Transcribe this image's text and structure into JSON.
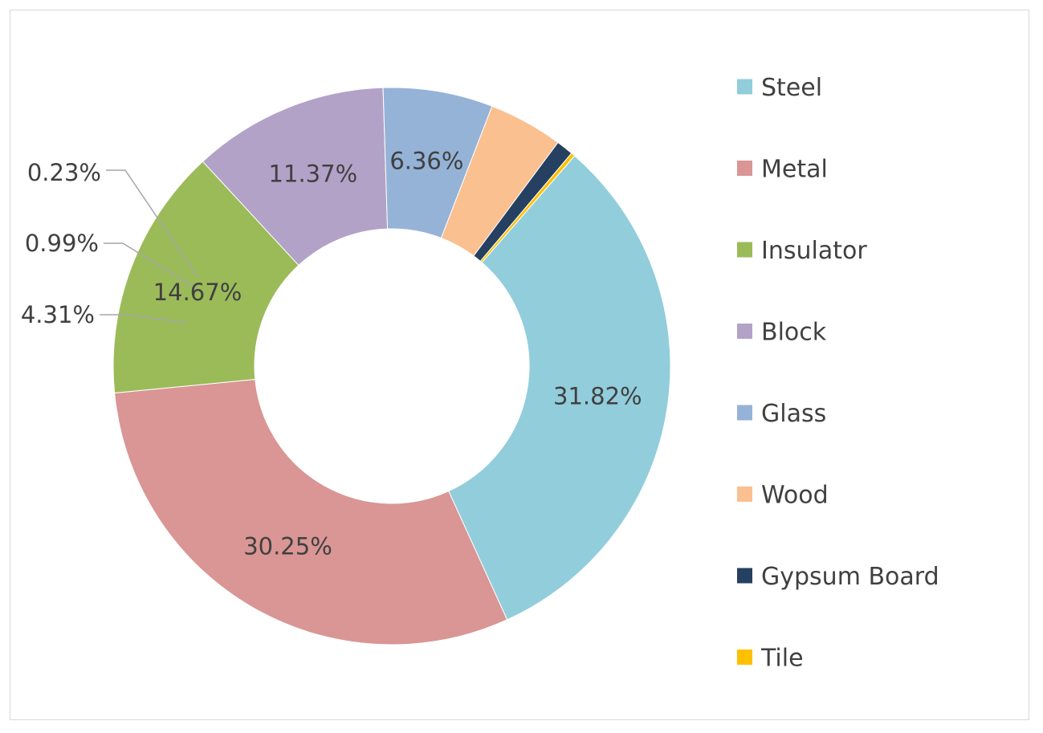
{
  "chart_data": {
    "type": "pie",
    "variant": "doughnut",
    "legend_position": "right",
    "series": [
      {
        "name": "Steel",
        "value": 31.82,
        "label": "31.82%",
        "color": "#92cddc"
      },
      {
        "name": "Metal",
        "value": 30.25,
        "label": "30.25%",
        "color": "#d99694"
      },
      {
        "name": "Insulator",
        "value": 14.67,
        "label": "14.67%",
        "color": "#9bbb59"
      },
      {
        "name": "Block",
        "value": 11.37,
        "label": "11.37%",
        "color": "#b3a2c7"
      },
      {
        "name": "Glass",
        "value": 6.36,
        "label": "6.36%",
        "color": "#95b3d7"
      },
      {
        "name": "Wood",
        "value": 4.31,
        "label": "4.31%",
        "color": "#fac090"
      },
      {
        "name": "Gypsum Board",
        "value": 0.99,
        "label": "0.99%",
        "color": "#254061"
      },
      {
        "name": "Tile",
        "value": 0.23,
        "label": "0.23%",
        "color": "#ffc000"
      }
    ]
  }
}
